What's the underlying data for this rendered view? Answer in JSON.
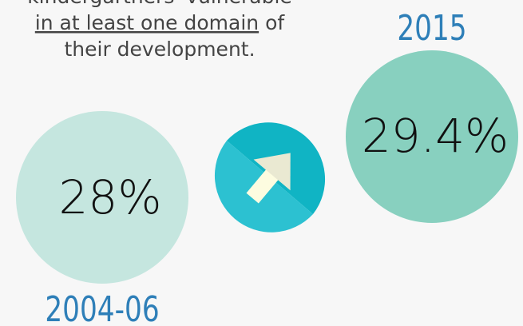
{
  "caption": {
    "line1": "kindergartners' vulnerable",
    "line2_underlined": "in at least one domain",
    "line2_rest": "of",
    "line3": "their development."
  },
  "before": {
    "value": "28%",
    "label": "2004-06"
  },
  "after": {
    "value": "29.4%",
    "label": "2015"
  }
}
